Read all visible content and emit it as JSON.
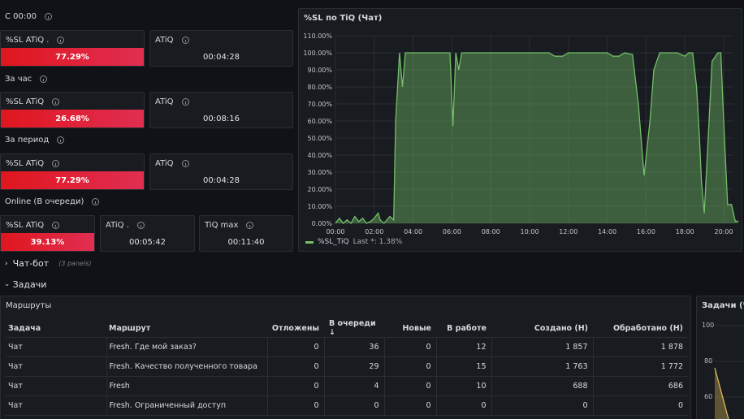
{
  "stats": {
    "section_since": "С 00:00",
    "section_hour": "За час",
    "section_period": "За период",
    "section_online": "Online (В очереди)",
    "since": {
      "sl_title": "%SL ATiQ .",
      "sl_value": "77.29%",
      "atiq_title": "ATiQ",
      "atiq_value": "00:04:28"
    },
    "hour": {
      "sl_title": "%SL ATiQ",
      "sl_value": "26.68%",
      "atiq_title": "ATiQ",
      "atiq_value": "00:08:16"
    },
    "period": {
      "sl_title": "%SL ATiQ",
      "sl_value": "77.29%",
      "atiq_title": "ATiQ",
      "atiq_value": "00:04:28"
    },
    "online": {
      "sl_title": "%SL ATiQ",
      "sl_value": "39.13%",
      "atiq_title": "ATiQ .",
      "atiq_value": "00:05:42",
      "tiq_title": "TiQ max",
      "tiq_value": "00:11:40"
    }
  },
  "chart_panel": {
    "title": "%SL по TiQ (Чат)",
    "legend_name": "%SL_TiQ",
    "legend_last": "Last *: 1.38%"
  },
  "chart_data": {
    "type": "line",
    "title": "%SL по TiQ (Чат)",
    "y_ticks": [
      "110.00%",
      "100.00%",
      "90.00%",
      "80.00%",
      "70.00%",
      "60.00%",
      "50.00%",
      "40.00%",
      "30.00%",
      "20.00%",
      "10.00%",
      "0.00%"
    ],
    "x_ticks": [
      "00:00",
      "02:00",
      "04:00",
      "06:00",
      "08:00",
      "10:00",
      "12:00",
      "14:00",
      "16:00",
      "18:00",
      "20:00"
    ],
    "ylim": [
      0,
      110
    ],
    "xlim": [
      0,
      20.5
    ],
    "series": [
      {
        "name": "%SL_TiQ",
        "color": "#73bf69",
        "points": [
          [
            0,
            0
          ],
          [
            0.2,
            3
          ],
          [
            0.4,
            0
          ],
          [
            0.6,
            2
          ],
          [
            0.8,
            0
          ],
          [
            1.0,
            4
          ],
          [
            1.2,
            1
          ],
          [
            1.4,
            3
          ],
          [
            1.6,
            0
          ],
          [
            1.8,
            1
          ],
          [
            2.0,
            3
          ],
          [
            2.2,
            6
          ],
          [
            2.3,
            2
          ],
          [
            2.5,
            0
          ],
          [
            2.8,
            4
          ],
          [
            3.0,
            2
          ],
          [
            3.1,
            60
          ],
          [
            3.3,
            100
          ],
          [
            3.45,
            80
          ],
          [
            3.6,
            100
          ],
          [
            4.0,
            100
          ],
          [
            5.0,
            100
          ],
          [
            5.9,
            100
          ],
          [
            6.05,
            57
          ],
          [
            6.2,
            100
          ],
          [
            6.35,
            90
          ],
          [
            6.5,
            100
          ],
          [
            8.0,
            100
          ],
          [
            10.0,
            100
          ],
          [
            11.0,
            100
          ],
          [
            11.3,
            98
          ],
          [
            11.7,
            98
          ],
          [
            12.0,
            100
          ],
          [
            13.0,
            100
          ],
          [
            14.0,
            100
          ],
          [
            14.3,
            98
          ],
          [
            14.6,
            98
          ],
          [
            14.9,
            100
          ],
          [
            15.3,
            99
          ],
          [
            15.6,
            70
          ],
          [
            15.9,
            28
          ],
          [
            16.2,
            60
          ],
          [
            16.4,
            90
          ],
          [
            16.7,
            100
          ],
          [
            17.3,
            100
          ],
          [
            17.6,
            100
          ],
          [
            18.0,
            98
          ],
          [
            18.2,
            100
          ],
          [
            18.4,
            100
          ],
          [
            18.6,
            80
          ],
          [
            18.75,
            50
          ],
          [
            18.85,
            25
          ],
          [
            19.0,
            6
          ],
          [
            19.2,
            50
          ],
          [
            19.4,
            95
          ],
          [
            19.7,
            100
          ],
          [
            19.85,
            100
          ],
          [
            20.0,
            60
          ],
          [
            20.2,
            11
          ],
          [
            20.4,
            11
          ],
          [
            20.6,
            1
          ],
          [
            20.75,
            1.38
          ]
        ]
      }
    ]
  },
  "sections": {
    "chatbot": "Чат-бот",
    "chatbot_note": "(3 panels)",
    "tasks": "Задачи"
  },
  "routes": {
    "title": "Маршруты",
    "columns": [
      "Задача",
      "Маршрут",
      "Отложены",
      "В очереди",
      "Новые",
      "В работе",
      "Создано (Н)",
      "Обработано (Н)"
    ],
    "sort_indicator": "↓",
    "rows": [
      [
        "Чат",
        "Fresh. Где мой заказ?",
        "0",
        "36",
        "0",
        "12",
        "1 857",
        "1 878"
      ],
      [
        "Чат",
        "Fresh. Качество полученного товара",
        "0",
        "29",
        "0",
        "15",
        "1 763",
        "1 772"
      ],
      [
        "Чат",
        "Fresh",
        "0",
        "4",
        "0",
        "10",
        "688",
        "686"
      ],
      [
        "Чат",
        "Fresh. Ограниченный доступ",
        "0",
        "0",
        "0",
        "0",
        "0",
        "0"
      ]
    ]
  },
  "tasks_chart": {
    "title": "Задачи (Чат",
    "y_ticks": [
      "100",
      "80",
      "60"
    ],
    "line_color": "#e5c15a"
  }
}
